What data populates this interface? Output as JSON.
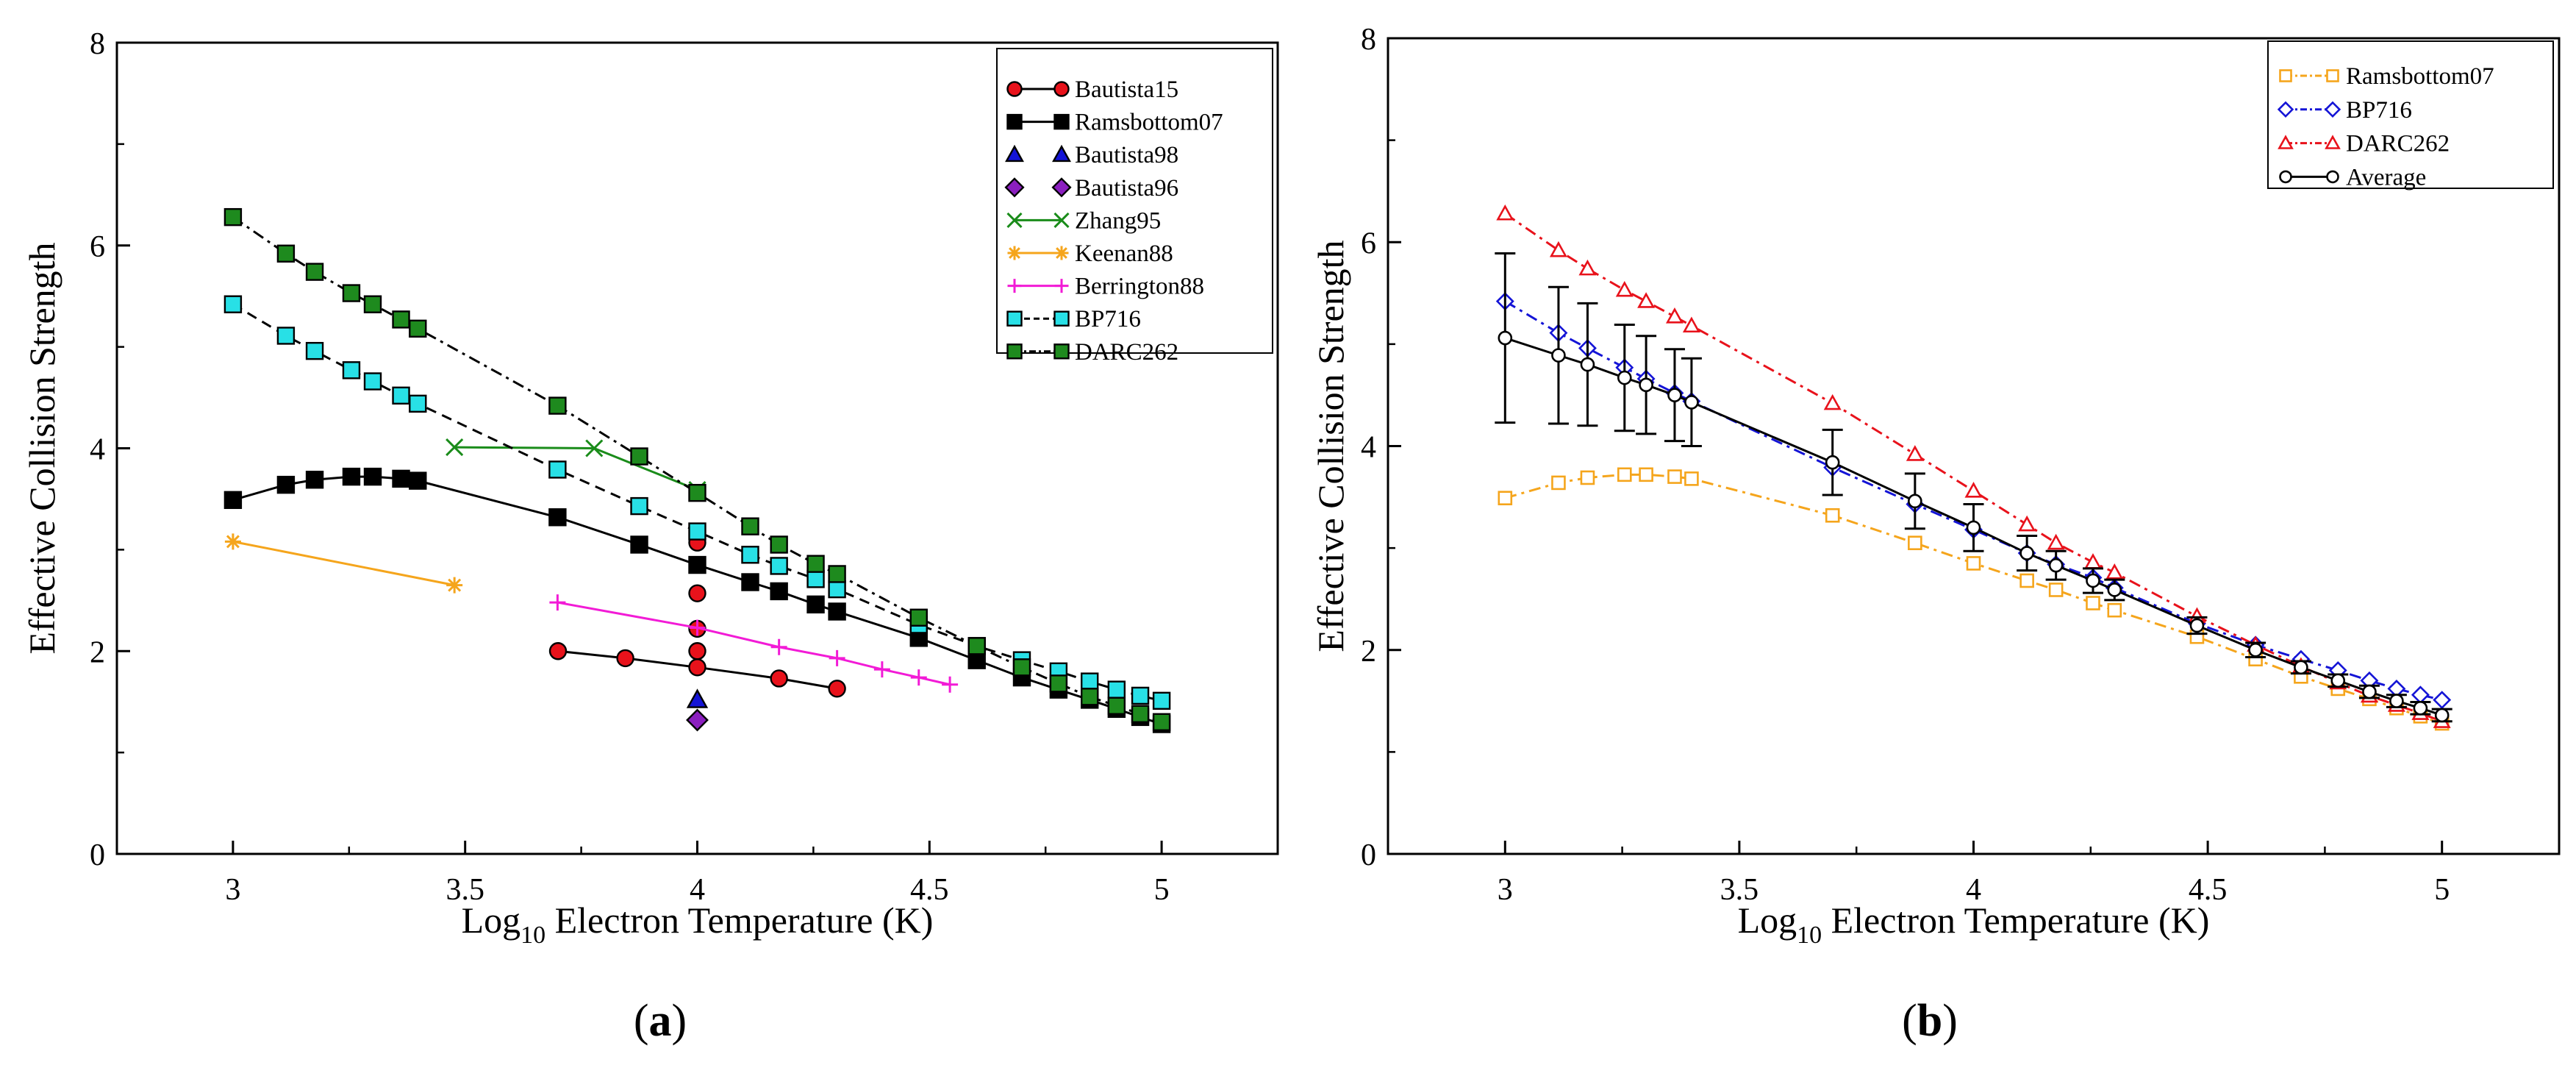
{
  "chart_data": [
    {
      "type": "line",
      "panel_label": "a",
      "xlabel_prefix": "Log",
      "xlabel_sub": "10",
      "xlabel_suffix": " Electron Temperature (K)",
      "ylabel": "Effective Collision Strength",
      "xlim": [
        2.75,
        5.25
      ],
      "ylim": [
        0,
        8
      ],
      "xticks": [
        3,
        3.5,
        4,
        4.5,
        5
      ],
      "xtick_labels": [
        "3",
        "3.5",
        "4",
        "4.5",
        "5"
      ],
      "yticks": [
        0,
        2,
        4,
        6,
        8
      ],
      "ytick_labels": [
        "0",
        "2",
        "4",
        "6",
        "8"
      ],
      "legend_position": "top-right",
      "series": [
        {
          "name": "Bautista15",
          "color": "#e8121b",
          "marker": "circle",
          "filled": true,
          "line": "solid",
          "line_color": "#000000",
          "segments": [
            [
              [
                3.7,
                2.0
              ],
              [
                3.845,
                1.93
              ],
              [
                4.0,
                1.84
              ],
              [
                4.176,
                1.73
              ],
              [
                4.301,
                1.63
              ]
            ],
            [
              [
                4.0,
                3.07
              ]
            ],
            [
              [
                4.0,
                2.57
              ]
            ],
            [
              [
                4.0,
                2.22
              ]
            ],
            [
              [
                4.0,
                2.0
              ]
            ]
          ]
        },
        {
          "name": "Ramsbottom07",
          "color": "#000000",
          "marker": "square",
          "filled": true,
          "line": "solid",
          "line_color": "#000000",
          "segments": [
            [
              [
                3.0,
                3.49
              ],
              [
                3.114,
                3.64
              ],
              [
                3.176,
                3.69
              ],
              [
                3.255,
                3.72
              ],
              [
                3.301,
                3.72
              ],
              [
                3.362,
                3.7
              ],
              [
                3.398,
                3.68
              ],
              [
                3.699,
                3.32
              ],
              [
                3.875,
                3.05
              ],
              [
                4.0,
                2.85
              ],
              [
                4.114,
                2.68
              ],
              [
                4.176,
                2.59
              ],
              [
                4.255,
                2.46
              ],
              [
                4.301,
                2.39
              ],
              [
                4.477,
                2.13
              ],
              [
                4.602,
                1.91
              ],
              [
                4.699,
                1.74
              ],
              [
                4.778,
                1.62
              ],
              [
                4.845,
                1.52
              ],
              [
                4.903,
                1.43
              ],
              [
                4.954,
                1.35
              ],
              [
                5.0,
                1.28
              ]
            ]
          ]
        },
        {
          "name": "Bautista98",
          "color": "#1414d6",
          "marker": "triangle",
          "filled": true,
          "line": "none",
          "line_color": "#000000",
          "segments": [
            [
              [
                4.0,
                1.52
              ]
            ]
          ]
        },
        {
          "name": "Bautista96",
          "color": "#8b1fbf",
          "marker": "diamond",
          "filled": true,
          "line": "none",
          "line_color": "#000000",
          "segments": [
            [
              [
                4.0,
                1.32
              ]
            ]
          ]
        },
        {
          "name": "Zhang95",
          "color": "#1a8c1a",
          "marker": "x",
          "filled": false,
          "line": "solid",
          "line_color": "#1a8c1a",
          "segments": [
            [
              [
                3.477,
                4.01
              ],
              [
                3.778,
                4.0
              ],
              [
                4.0,
                3.59
              ]
            ]
          ]
        },
        {
          "name": "Keenan88",
          "color": "#f5a51c",
          "marker": "asterisk",
          "filled": false,
          "line": "solid",
          "line_color": "#f5a51c",
          "segments": [
            [
              [
                3.0,
                3.08
              ],
              [
                3.477,
                2.65
              ]
            ]
          ]
        },
        {
          "name": "Berrington88",
          "color": "#f21bd6",
          "marker": "plus",
          "filled": false,
          "line": "solid",
          "line_color": "#f21bd6",
          "segments": [
            [
              [
                3.699,
                2.48
              ],
              [
                4.0,
                2.23
              ],
              [
                4.176,
                2.04
              ],
              [
                4.301,
                1.93
              ],
              [
                4.398,
                1.82
              ],
              [
                4.477,
                1.74
              ],
              [
                4.544,
                1.67
              ]
            ]
          ]
        },
        {
          "name": "BP716",
          "color": "#28e0e6",
          "marker": "square",
          "filled": true,
          "line": "dashed",
          "line_color": "#000000",
          "segments": [
            [
              [
                3.0,
                5.42
              ],
              [
                3.114,
                5.11
              ],
              [
                3.176,
                4.96
              ],
              [
                3.255,
                4.77
              ],
              [
                3.301,
                4.66
              ],
              [
                3.362,
                4.52
              ],
              [
                3.398,
                4.44
              ],
              [
                3.699,
                3.79
              ],
              [
                3.875,
                3.43
              ],
              [
                4.0,
                3.18
              ],
              [
                4.114,
                2.95
              ],
              [
                4.176,
                2.84
              ],
              [
                4.255,
                2.71
              ],
              [
                4.301,
                2.61
              ],
              [
                4.477,
                2.26
              ],
              [
                4.602,
                2.05
              ],
              [
                4.699,
                1.91
              ],
              [
                4.778,
                1.8
              ],
              [
                4.845,
                1.7
              ],
              [
                4.903,
                1.62
              ],
              [
                4.954,
                1.56
              ],
              [
                5.0,
                1.51
              ]
            ]
          ]
        },
        {
          "name": "DARC262",
          "color": "#1e8a1e",
          "marker": "square",
          "filled": true,
          "line": "dashdot",
          "line_color": "#000000",
          "segments": [
            [
              [
                3.0,
                6.28
              ],
              [
                3.114,
                5.92
              ],
              [
                3.176,
                5.74
              ],
              [
                3.255,
                5.53
              ],
              [
                3.301,
                5.42
              ],
              [
                3.362,
                5.27
              ],
              [
                3.398,
                5.18
              ],
              [
                3.699,
                4.42
              ],
              [
                3.875,
                3.92
              ],
              [
                4.0,
                3.56
              ],
              [
                4.114,
                3.23
              ],
              [
                4.176,
                3.05
              ],
              [
                4.255,
                2.86
              ],
              [
                4.301,
                2.76
              ],
              [
                4.477,
                2.33
              ],
              [
                4.602,
                2.05
              ],
              [
                4.699,
                1.84
              ],
              [
                4.778,
                1.68
              ],
              [
                4.845,
                1.55
              ],
              [
                4.903,
                1.46
              ],
              [
                4.954,
                1.38
              ],
              [
                5.0,
                1.3
              ]
            ]
          ]
        }
      ]
    },
    {
      "type": "line",
      "panel_label": "b",
      "xlabel_prefix": "Log",
      "xlabel_sub": "10",
      "xlabel_suffix": " Electron Temperature (K)",
      "ylabel": "Effective Collision Strength",
      "xlim": [
        2.75,
        5.25
      ],
      "ylim": [
        0,
        8
      ],
      "xticks": [
        3,
        3.5,
        4,
        4.5,
        5
      ],
      "xtick_labels": [
        "3",
        "3.5",
        "4",
        "4.5",
        "5"
      ],
      "yticks": [
        0,
        2,
        4,
        6,
        8
      ],
      "ytick_labels": [
        "0",
        "2",
        "4",
        "6",
        "8"
      ],
      "legend_position": "top-right",
      "series": [
        {
          "name": "Ramsbottom07",
          "color": "#f5a51c",
          "marker": "square",
          "filled": false,
          "line": "dashdot",
          "line_color": "#f5a51c",
          "segments": [
            [
              [
                3.0,
                3.49
              ],
              [
                3.114,
                3.64
              ],
              [
                3.176,
                3.69
              ],
              [
                3.255,
                3.72
              ],
              [
                3.301,
                3.72
              ],
              [
                3.362,
                3.7
              ],
              [
                3.398,
                3.68
              ],
              [
                3.699,
                3.32
              ],
              [
                3.875,
                3.05
              ],
              [
                4.0,
                2.85
              ],
              [
                4.114,
                2.68
              ],
              [
                4.176,
                2.59
              ],
              [
                4.255,
                2.46
              ],
              [
                4.301,
                2.39
              ],
              [
                4.477,
                2.13
              ],
              [
                4.602,
                1.91
              ],
              [
                4.699,
                1.74
              ],
              [
                4.778,
                1.62
              ],
              [
                4.845,
                1.52
              ],
              [
                4.903,
                1.43
              ],
              [
                4.954,
                1.35
              ],
              [
                5.0,
                1.28
              ]
            ]
          ]
        },
        {
          "name": "BP716",
          "color": "#1414d6",
          "marker": "diamond",
          "filled": false,
          "line": "dashdot",
          "line_color": "#1414d6",
          "segments": [
            [
              [
                3.0,
                5.42
              ],
              [
                3.114,
                5.11
              ],
              [
                3.176,
                4.96
              ],
              [
                3.255,
                4.77
              ],
              [
                3.301,
                4.66
              ],
              [
                3.362,
                4.52
              ],
              [
                3.398,
                4.44
              ],
              [
                3.699,
                3.79
              ],
              [
                3.875,
                3.43
              ],
              [
                4.0,
                3.18
              ],
              [
                4.114,
                2.95
              ],
              [
                4.176,
                2.84
              ],
              [
                4.255,
                2.71
              ],
              [
                4.301,
                2.61
              ],
              [
                4.477,
                2.26
              ],
              [
                4.602,
                2.05
              ],
              [
                4.699,
                1.91
              ],
              [
                4.778,
                1.8
              ],
              [
                4.845,
                1.7
              ],
              [
                4.903,
                1.62
              ],
              [
                4.954,
                1.56
              ],
              [
                5.0,
                1.51
              ]
            ]
          ]
        },
        {
          "name": "DARC262",
          "color": "#e8121b",
          "marker": "triangle",
          "filled": false,
          "line": "dashdot",
          "line_color": "#e8121b",
          "segments": [
            [
              [
                3.0,
                6.28
              ],
              [
                3.114,
                5.92
              ],
              [
                3.176,
                5.74
              ],
              [
                3.255,
                5.53
              ],
              [
                3.301,
                5.42
              ],
              [
                3.362,
                5.27
              ],
              [
                3.398,
                5.18
              ],
              [
                3.699,
                4.42
              ],
              [
                3.875,
                3.92
              ],
              [
                4.0,
                3.56
              ],
              [
                4.114,
                3.23
              ],
              [
                4.176,
                3.05
              ],
              [
                4.255,
                2.86
              ],
              [
                4.301,
                2.76
              ],
              [
                4.477,
                2.33
              ],
              [
                4.602,
                2.05
              ],
              [
                4.699,
                1.84
              ],
              [
                4.778,
                1.68
              ],
              [
                4.845,
                1.55
              ],
              [
                4.903,
                1.46
              ],
              [
                4.954,
                1.38
              ],
              [
                5.0,
                1.3
              ]
            ]
          ]
        },
        {
          "name": "Average",
          "color": "#000000",
          "marker": "circle",
          "filled": false,
          "line": "solid",
          "line_color": "#000000",
          "segments": [
            [
              [
                3.0,
                5.06
              ],
              [
                3.114,
                4.89
              ],
              [
                3.176,
                4.8
              ],
              [
                3.255,
                4.67
              ],
              [
                3.301,
                4.6
              ],
              [
                3.362,
                4.5
              ],
              [
                3.398,
                4.43
              ],
              [
                3.699,
                3.84
              ],
              [
                3.875,
                3.46
              ],
              [
                4.0,
                3.2
              ],
              [
                4.114,
                2.95
              ],
              [
                4.176,
                2.83
              ],
              [
                4.255,
                2.68
              ],
              [
                4.301,
                2.59
              ],
              [
                4.477,
                2.24
              ],
              [
                4.602,
                2.0
              ],
              [
                4.699,
                1.83
              ],
              [
                4.778,
                1.7
              ],
              [
                4.845,
                1.59
              ],
              [
                4.903,
                1.5
              ],
              [
                4.954,
                1.43
              ],
              [
                5.0,
                1.36
              ]
            ]
          ],
          "errors": [
            0.83,
            0.67,
            0.6,
            0.52,
            0.48,
            0.45,
            0.43,
            0.32,
            0.27,
            0.23,
            0.17,
            0.14,
            0.12,
            0.1,
            0.08,
            0.07,
            0.06,
            0.06,
            0.06,
            0.06,
            0.06,
            0.06
          ]
        }
      ]
    }
  ]
}
